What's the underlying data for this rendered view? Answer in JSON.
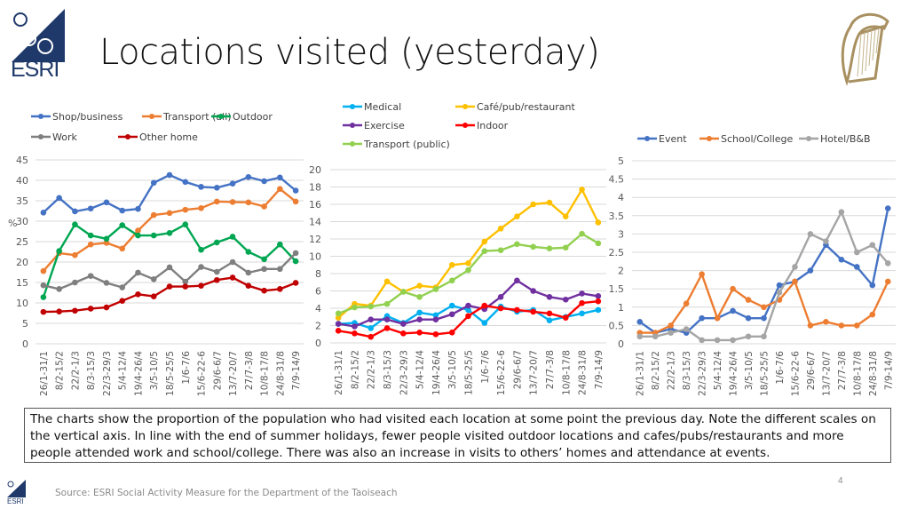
{
  "slide": {
    "title": "Locations visited (yesterday)",
    "logo_text": "ESRI",
    "caption": "The charts show the proportion of the population who had visited each location at some point the previous day. Note the different scales on the vertical axis. In line with the end of summer holidays, fewer people visited outdoor locations and cafes/pubs/restaurants and more people attended work and school/college. There was also an increase in visits to others’ homes and attendance at events.",
    "source": "Source: ESRI Social Activity Measure for the Department of the Taoiseach",
    "page_number": "4"
  },
  "chart_data": [
    {
      "type": "line",
      "title": "",
      "ylabel": "%",
      "xlabel": "",
      "ylim": [
        0,
        45
      ],
      "yticks": [
        0,
        5,
        10,
        15,
        20,
        25,
        30,
        35,
        40,
        45
      ],
      "grid": true,
      "legend": "top",
      "categories": [
        "26/1-31/1",
        "8/2-15/2",
        "22/2-1/3",
        "8/3-15/3",
        "22/3-29/3",
        "5/4-12/4",
        "19/4-26/4",
        "3/5-10/5",
        "18/5-25/5",
        "1/6-7/6",
        "15/6-22-6",
        "29/6-6/7",
        "13/7-20/7",
        "27/7-3/8",
        "10/8-17/8",
        "24/8-31/8",
        "7/9-14/9"
      ],
      "series": [
        {
          "name": "Shop/business",
          "color": "#4472C4",
          "values": [
            32.1,
            35.7,
            32.4,
            33.1,
            34.6,
            32.6,
            33.0,
            39.4,
            41.3,
            39.6,
            38.4,
            38.2,
            39.2,
            40.8,
            39.8,
            40.7,
            37.5
          ]
        },
        {
          "name": "Transport (all)",
          "color": "#ED7D31",
          "values": [
            17.8,
            22.2,
            21.7,
            24.3,
            24.7,
            23.3,
            27.7,
            31.5,
            32.0,
            32.8,
            33.2,
            34.8,
            34.7,
            34.6,
            33.6,
            37.9,
            34.8
          ]
        },
        {
          "name": "Outdoor",
          "color": "#00A651",
          "values": [
            11.4,
            22.7,
            29.2,
            26.5,
            25.7,
            29.0,
            26.5,
            26.5,
            27.1,
            29.2,
            23.0,
            24.8,
            26.2,
            22.5,
            20.7,
            24.3,
            20.2
          ]
        },
        {
          "name": "Work",
          "color": "#7F7F7F",
          "values": [
            14.3,
            13.4,
            15.0,
            16.6,
            14.9,
            13.8,
            17.4,
            15.8,
            18.7,
            15.2,
            18.8,
            17.6,
            20.0,
            17.4,
            18.3,
            18.3,
            22.2
          ]
        },
        {
          "name": "Other home",
          "color": "#C00000",
          "values": [
            7.8,
            7.9,
            8.1,
            8.6,
            8.9,
            10.5,
            12.1,
            11.6,
            14.0,
            14.0,
            14.2,
            15.6,
            16.2,
            14.2,
            13.0,
            13.4,
            14.9
          ]
        }
      ]
    },
    {
      "type": "line",
      "title": "",
      "ylabel": "",
      "xlabel": "",
      "ylim": [
        0,
        20
      ],
      "yticks": [
        0,
        2,
        4,
        6,
        8,
        10,
        12,
        14,
        16,
        18,
        20
      ],
      "grid": true,
      "legend": "top",
      "categories": [
        "26/1-31/1",
        "8/2-15/2",
        "22/2-1/3",
        "8/3-15/3",
        "22/3-29/3",
        "5/4-12/4",
        "19/4-26/4",
        "3/5-10/5",
        "18/5-25/5",
        "1/6-7/6",
        "15/6-22-6",
        "29/6-6/7",
        "13/7-20/7",
        "27/7-3/8",
        "10/8-17/8",
        "24/8-31/8",
        "7/9-14/9"
      ],
      "series": [
        {
          "name": "Medical",
          "color": "#00B0F0",
          "values": [
            2.2,
            2.3,
            1.7,
            3.1,
            2.3,
            3.5,
            3.2,
            4.3,
            3.8,
            2.3,
            4.2,
            3.6,
            3.8,
            2.6,
            3.0,
            3.4,
            3.8
          ]
        },
        {
          "name": "Café/pub/restaurant",
          "color": "#FFC000",
          "values": [
            2.9,
            4.5,
            4.3,
            7.1,
            5.9,
            6.6,
            6.4,
            9.0,
            9.2,
            11.7,
            13.2,
            14.6,
            16.0,
            16.2,
            14.6,
            17.7,
            13.9
          ]
        },
        {
          "name": "Exercise",
          "color": "#7030A0",
          "values": [
            2.2,
            1.9,
            2.7,
            2.7,
            2.2,
            2.7,
            2.7,
            3.3,
            4.3,
            3.9,
            5.3,
            7.2,
            6.0,
            5.3,
            5.0,
            5.7,
            5.4
          ]
        },
        {
          "name": "Indoor",
          "color": "#FF0000",
          "values": [
            1.4,
            1.1,
            0.7,
            1.7,
            1.1,
            1.2,
            1.0,
            1.2,
            3.1,
            4.3,
            4.0,
            3.8,
            3.6,
            3.4,
            2.9,
            4.6,
            4.8
          ]
        },
        {
          "name": "Transport (public)",
          "color": "#92D050",
          "values": [
            3.4,
            4.1,
            4.2,
            4.5,
            5.9,
            5.3,
            6.2,
            7.2,
            8.4,
            10.6,
            10.7,
            11.4,
            11.1,
            10.9,
            11.0,
            12.6,
            11.5
          ]
        }
      ]
    },
    {
      "type": "line",
      "title": "",
      "ylabel": "",
      "xlabel": "",
      "ylim": [
        0,
        5
      ],
      "yticks": [
        0,
        0.5,
        1,
        1.5,
        2,
        2.5,
        3,
        3.5,
        4,
        4.5,
        5
      ],
      "grid": true,
      "legend": "top",
      "categories": [
        "26/1-31/1",
        "8/2-15/2",
        "22/2-1/3",
        "8/3-15/3",
        "22/3-29/3",
        "5/4-12/4",
        "19/4-26/4",
        "3/5-10/5",
        "18/5-25/5",
        "1/6-7/6",
        "15/6-22-6",
        "29/6-6/7",
        "13/7-20/7",
        "27/7-3/8",
        "10/8-17/8",
        "24/8-31/8",
        "7/9-14/9"
      ],
      "series": [
        {
          "name": "Event",
          "color": "#4472C4",
          "values": [
            0.6,
            0.3,
            0.4,
            0.3,
            0.7,
            0.7,
            0.9,
            0.7,
            0.7,
            1.6,
            1.7,
            2.0,
            2.7,
            2.3,
            2.1,
            1.6,
            3.7
          ]
        },
        {
          "name": "School/College",
          "color": "#ED7D31",
          "values": [
            0.3,
            0.3,
            0.5,
            1.1,
            1.9,
            0.7,
            1.5,
            1.2,
            1.0,
            1.2,
            1.7,
            0.5,
            0.6,
            0.5,
            0.5,
            0.8,
            1.7
          ]
        },
        {
          "name": "Hotel/B&B",
          "color": "#A5A5A5",
          "values": [
            0.2,
            0.2,
            0.3,
            0.4,
            0.1,
            0.1,
            0.1,
            0.2,
            0.2,
            1.4,
            2.1,
            3.0,
            2.8,
            3.6,
            2.5,
            2.7,
            2.2
          ]
        }
      ]
    }
  ]
}
